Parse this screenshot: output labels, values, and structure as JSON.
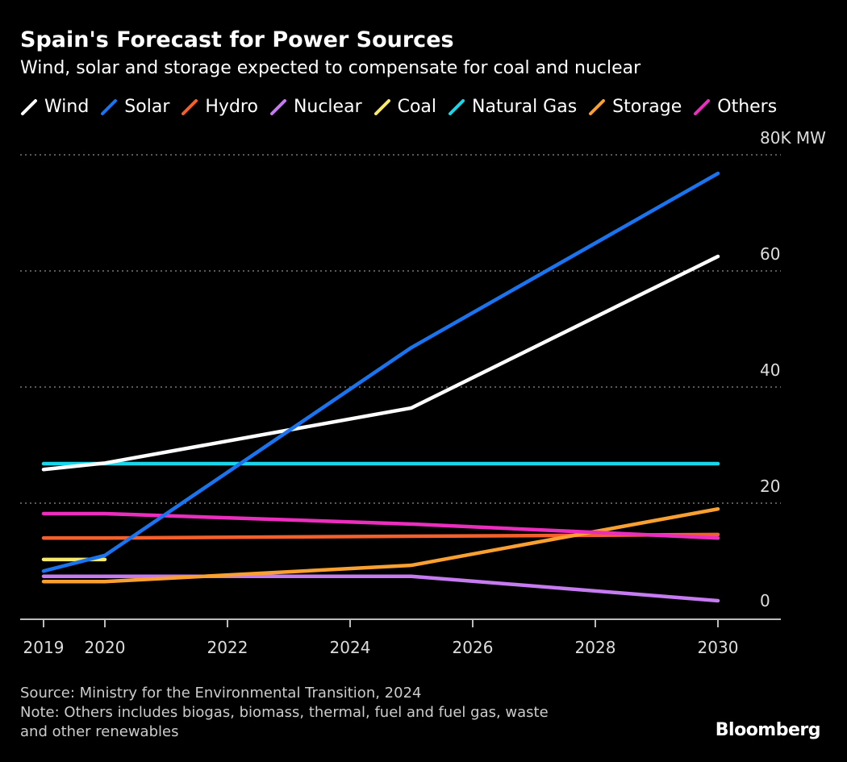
{
  "chart_data": {
    "type": "line",
    "title": "Spain's Forecast for Power Sources",
    "subtitle": "Wind, solar and storage expected to compensate for coal and nuclear",
    "xlabel": "",
    "ylabel": "K MW",
    "ylim": [
      0,
      80
    ],
    "xlim": [
      2019,
      2030
    ],
    "x_ticks": [
      "2019",
      "2020",
      "2022",
      "2024",
      "2026",
      "2028",
      "2030"
    ],
    "y_ticks": [
      {
        "value": 0,
        "label": "0"
      },
      {
        "value": 20,
        "label": "20"
      },
      {
        "value": 40,
        "label": "40"
      },
      {
        "value": 60,
        "label": "60"
      },
      {
        "value": 80,
        "label": "80K MW"
      }
    ],
    "grid": true,
    "legend_placement": "top",
    "series": [
      {
        "name": "Wind",
        "color": "#ffffff",
        "x": [
          2019,
          2020,
          2025,
          2030
        ],
        "values": [
          25.8,
          26.9,
          36.4,
          62.5
        ]
      },
      {
        "name": "Solar",
        "color": "#1a74f0",
        "x": [
          2019,
          2020,
          2025,
          2030
        ],
        "values": [
          8.3,
          11.0,
          46.8,
          76.8
        ]
      },
      {
        "name": "Hydro",
        "color": "#f4602b",
        "x": [
          2019,
          2020,
          2025,
          2030
        ],
        "values": [
          14.0,
          14.0,
          14.3,
          14.6
        ]
      },
      {
        "name": "Nuclear",
        "color": "#c77bf0",
        "x": [
          2019,
          2020,
          2025,
          2030
        ],
        "values": [
          7.4,
          7.4,
          7.4,
          3.2
        ]
      },
      {
        "name": "Coal",
        "color": "#f6e96b",
        "x": [
          2019,
          2020
        ],
        "values": [
          10.3,
          10.3
        ]
      },
      {
        "name": "Natural Gas",
        "color": "#1ad6ea",
        "x": [
          2019,
          2020,
          2025,
          2030
        ],
        "values": [
          26.8,
          26.8,
          26.8,
          26.8
        ]
      },
      {
        "name": "Storage",
        "color": "#f9a031",
        "x": [
          2019,
          2020,
          2025,
          2030
        ],
        "values": [
          6.5,
          6.5,
          9.3,
          19.0
        ]
      },
      {
        "name": "Others",
        "color": "#ec2ebf",
        "x": [
          2019,
          2020,
          2025,
          2030
        ],
        "values": [
          18.2,
          18.2,
          16.4,
          14.0
        ]
      }
    ]
  },
  "footer": {
    "source": "Source: Ministry for the Environmental Transition, 2024",
    "note": "Note: Others includes biogas, biomass, thermal, fuel and fuel gas, waste",
    "note2": "and other renewables",
    "brand": "Bloomberg"
  }
}
